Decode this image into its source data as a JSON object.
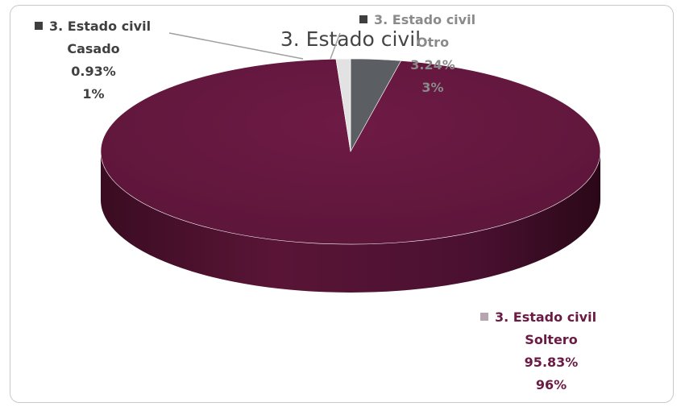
{
  "chart_data": {
    "type": "pie",
    "title": "3. Estado civil",
    "series_name": "3. Estado civil",
    "slices": [
      {
        "category": "Otro",
        "percent": 3.24,
        "rounded": "3%",
        "percent_label": "3.24%",
        "color": "#5b5e62",
        "label_color": "#8a8a8a"
      },
      {
        "category": "Soltero",
        "percent": 95.83,
        "rounded": "96%",
        "percent_label": "95.83%",
        "color": "#6b1a43",
        "label_color": "#6b1a43"
      },
      {
        "category": "Casado",
        "percent": 0.93,
        "rounded": "1%",
        "percent_label": "0.93%",
        "color": "#e2e2e2",
        "label_color": "#404040"
      }
    ],
    "legend_placement": "labels-beside-slices",
    "grid": false
  }
}
